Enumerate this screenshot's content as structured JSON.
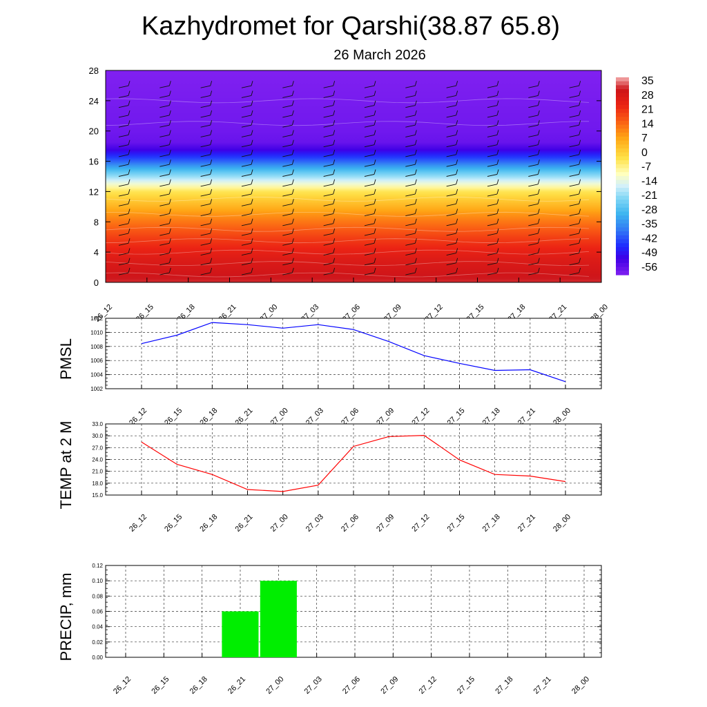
{
  "title": "Kazhydromet for Qarshi(38.87 65.8)",
  "subtitle": "26 March 2026",
  "chart_data": [
    {
      "type": "heatmap",
      "description_of_field": "temperature vs height with wind barbs",
      "x_ticks": [
        "26_12",
        "26_15",
        "26_18",
        "26_21",
        "27_00",
        "27_03",
        "27_06",
        "27_09",
        "27_12",
        "27_15",
        "27_18",
        "27_21",
        "28_00"
      ],
      "y_ticks": [
        0,
        4,
        8,
        12,
        16,
        20,
        24,
        28
      ],
      "ylim": [
        0,
        28
      ],
      "colorbar_labels": [
        "35",
        "28",
        "21",
        "14",
        "7",
        "0",
        "-7",
        "-14",
        "-21",
        "-28",
        "-35",
        "-42",
        "-49",
        "-56"
      ],
      "colorbar_range": [
        -60,
        38
      ],
      "band_temperatures": [
        {
          "h": 0,
          "t": 33
        },
        {
          "h": 3,
          "t": 28
        },
        {
          "h": 6,
          "t": 20
        },
        {
          "h": 9,
          "t": 10
        },
        {
          "h": 12,
          "t": -3
        },
        {
          "h": 13,
          "t": -12
        },
        {
          "h": 14.5,
          "t": -25
        },
        {
          "h": 16,
          "t": -40
        },
        {
          "h": 17.5,
          "t": -52
        },
        {
          "h": 18.5,
          "t": -57
        },
        {
          "h": 20,
          "t": -58
        },
        {
          "h": 28,
          "t": -60
        }
      ]
    },
    {
      "type": "line",
      "ylabel": "PMSL",
      "categories": [
        "26_12",
        "26_15",
        "26_18",
        "26_21",
        "27_00",
        "27_03",
        "27_06",
        "27_09",
        "27_12",
        "27_15",
        "27_18",
        "27_21",
        "28_00"
      ],
      "values": [
        1008.4,
        1009.6,
        1011.4,
        1011.1,
        1010.6,
        1011.1,
        1010.4,
        1008.7,
        1006.7,
        1005.6,
        1004.6,
        1004.7,
        1003.0
      ],
      "ylim": [
        1002,
        1012
      ],
      "y_ticks": [
        "1002",
        "1004",
        "1006",
        "1008",
        "1010",
        "1012"
      ],
      "color": "#0000ff"
    },
    {
      "type": "line",
      "ylabel": "TEMP at 2 M",
      "categories": [
        "26_12",
        "26_15",
        "26_18",
        "26_21",
        "27_00",
        "27_03",
        "27_06",
        "27_09",
        "27_12",
        "27_15",
        "27_18",
        "27_21",
        "28_00"
      ],
      "values": [
        28.4,
        22.8,
        20.2,
        16.4,
        15.9,
        17.5,
        27.3,
        29.8,
        30.1,
        23.9,
        20.2,
        19.8,
        18.4
      ],
      "ylim": [
        15,
        33
      ],
      "y_ticks": [
        "15.0",
        "18.0",
        "21.0",
        "24.0",
        "27.0",
        "30.0",
        "33.0"
      ],
      "color": "#ff0000"
    },
    {
      "type": "bar",
      "ylabel": "PRECIP, mm",
      "categories": [
        "26_12",
        "26_15",
        "26_18",
        "26_21",
        "27_00",
        "27_03",
        "27_06",
        "27_09",
        "27_12",
        "27_15",
        "27_18",
        "27_21",
        "28_00"
      ],
      "values": [
        0,
        0,
        0,
        0.06,
        0.1,
        0,
        0,
        0,
        0,
        0,
        0,
        0,
        0
      ],
      "ylim": [
        0,
        0.12
      ],
      "y_ticks": [
        "0.00",
        "0.02",
        "0.04",
        "0.06",
        "0.08",
        "0.10",
        "0.12"
      ],
      "color": "#00ee00"
    }
  ]
}
